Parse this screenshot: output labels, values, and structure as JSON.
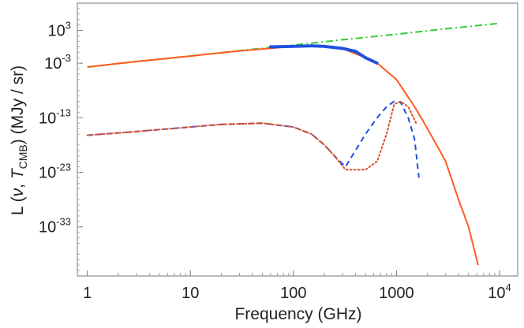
{
  "chart_data": {
    "type": "line",
    "xlabel": "Frequency (GHz)",
    "ylabel": {
      "prefix": "L (",
      "nu": "ν",
      "comma": ", ",
      "T": "T",
      "sub": "CMB",
      "suffix": ") (MJy / sr)"
    },
    "xscale": "log",
    "yscale": "log",
    "xlim": [
      0.8,
      15000
    ],
    "ylim": [
      1e-42,
      100000000.0
    ],
    "x_ticks": [
      {
        "value": 1,
        "base": "1",
        "exp": ""
      },
      {
        "value": 10,
        "base": "10",
        "exp": ""
      },
      {
        "value": 100,
        "base": "100",
        "exp": ""
      },
      {
        "value": 1000,
        "base": "1000",
        "exp": ""
      },
      {
        "value": 10000,
        "base": "10",
        "exp": "4"
      }
    ],
    "y_ticks": [
      {
        "value": 1000.0,
        "base": "10",
        "exp": "3"
      },
      {
        "value": 0.001,
        "base": "10",
        "exp": "-3"
      },
      {
        "value": 1e-13,
        "base": "10",
        "exp": "-13"
      },
      {
        "value": 1e-23,
        "base": "10",
        "exp": "-23"
      },
      {
        "value": 1e-33,
        "base": "10",
        "exp": "-33"
      }
    ],
    "grid": false,
    "legend": "none",
    "series": [
      {
        "style": "dash-dot",
        "color": "#33cc33",
        "x": [
          1,
          3,
          10,
          30,
          100,
          300,
          1000,
          3000,
          10000
        ],
        "y": [
          0.0002,
          0.002,
          0.02,
          0.2,
          2.0,
          20.0,
          200.0,
          2000.0,
          20000.0
        ]
      },
      {
        "style": "solid",
        "color": "#ff5a1f",
        "x": [
          1,
          3,
          10,
          30,
          100,
          150,
          200,
          300,
          500,
          650,
          1000,
          1500,
          2000,
          3000,
          4000,
          5000,
          6200
        ],
        "y": [
          0.0002,
          0.002,
          0.02,
          0.18,
          1.2,
          1.5,
          1.2,
          0.5,
          0.01,
          0.001,
          1e-06,
          1e-11,
          1e-15,
          1e-21,
          1e-28,
          1e-33,
          1e-40
        ]
      },
      {
        "style": "dotted",
        "color": "#1f4fe0",
        "x": [
          60,
          100,
          150,
          200,
          300,
          400,
          500,
          650
        ],
        "y": [
          1.0,
          1.2,
          1.5,
          1.2,
          0.5,
          0.15,
          0.01,
          0.001
        ]
      },
      {
        "style": "dashed",
        "color": "#1f4fe0",
        "x": [
          1,
          3,
          10,
          20,
          50,
          100,
          150,
          200,
          250,
          320,
          400,
          500,
          650,
          800,
          950,
          1100,
          1300,
          1500,
          1650
        ],
        "y": [
          6e-17,
          3e-16,
          2e-15,
          6e-15,
          1e-14,
          2e-15,
          1e-16,
          1e-18,
          1e-20,
          1e-22,
          1e-19,
          1e-16,
          1e-13,
          1e-11,
          1e-10,
          6e-11,
          1e-13,
          1e-17,
          1e-24
        ]
      },
      {
        "style": "dotted",
        "color": "#e0502a",
        "x": [
          1,
          3,
          10,
          20,
          50,
          100,
          150,
          200,
          250,
          320,
          400,
          500,
          650,
          800,
          950,
          1100,
          1300,
          1550
        ],
        "y": [
          6e-17,
          3e-16,
          2e-15,
          6e-15,
          1e-14,
          2e-15,
          1e-16,
          1e-18,
          1e-20,
          3e-23,
          3e-23,
          3e-23,
          1e-21,
          1e-16,
          3e-11,
          1e-10,
          1e-11,
          1e-14
        ]
      }
    ]
  }
}
